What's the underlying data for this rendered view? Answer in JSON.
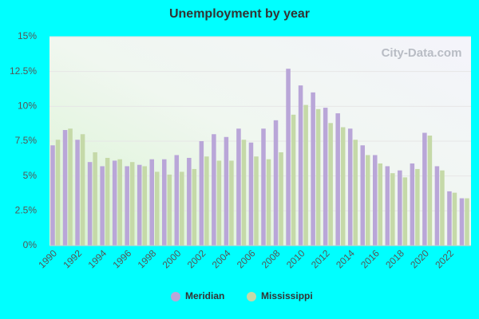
{
  "chart_data": {
    "type": "bar",
    "title": "Unemployment by year",
    "watermark": "City-Data.com",
    "categories": [
      "1990",
      null,
      "1992",
      null,
      "1994",
      null,
      "1996",
      null,
      "1998",
      null,
      "2000",
      null,
      "2002",
      null,
      "2004",
      null,
      "2006",
      null,
      "2008",
      null,
      "2010",
      null,
      "2012",
      null,
      "2014",
      null,
      "2016",
      null,
      "2018",
      null,
      "2020",
      null,
      "2022",
      null
    ],
    "series": [
      {
        "name": "Meridian",
        "color": "#b9a6d8",
        "values": [
          7.2,
          8.3,
          7.6,
          6.0,
          5.7,
          6.1,
          5.7,
          5.8,
          6.2,
          6.2,
          6.5,
          6.3,
          7.5,
          8.0,
          7.8,
          8.4,
          7.4,
          8.4,
          9.0,
          12.7,
          11.5,
          11.0,
          9.9,
          9.5,
          8.4,
          7.2,
          6.5,
          5.7,
          5.4,
          5.9,
          8.1,
          5.7,
          3.9,
          3.4
        ]
      },
      {
        "name": "Mississippi",
        "color": "#c5d9a8",
        "values": [
          7.6,
          8.4,
          8.0,
          6.7,
          6.3,
          6.2,
          6.0,
          5.7,
          5.3,
          5.1,
          5.3,
          5.5,
          6.4,
          6.1,
          6.1,
          7.6,
          6.4,
          6.2,
          6.7,
          9.4,
          10.1,
          9.8,
          8.8,
          8.5,
          7.6,
          6.5,
          5.9,
          5.2,
          4.9,
          5.5,
          7.9,
          5.4,
          3.8,
          3.4
        ]
      }
    ],
    "ylim": [
      0,
      15
    ],
    "yticks": [
      {
        "value": 0,
        "label": "0%"
      },
      {
        "value": 2.5,
        "label": "2.5%"
      },
      {
        "value": 5,
        "label": "5%"
      },
      {
        "value": 7.5,
        "label": "7.5%"
      },
      {
        "value": 10,
        "label": "10%"
      },
      {
        "value": 12.5,
        "label": "12.5%"
      },
      {
        "value": 15,
        "label": "15%"
      }
    ],
    "grid": true
  }
}
